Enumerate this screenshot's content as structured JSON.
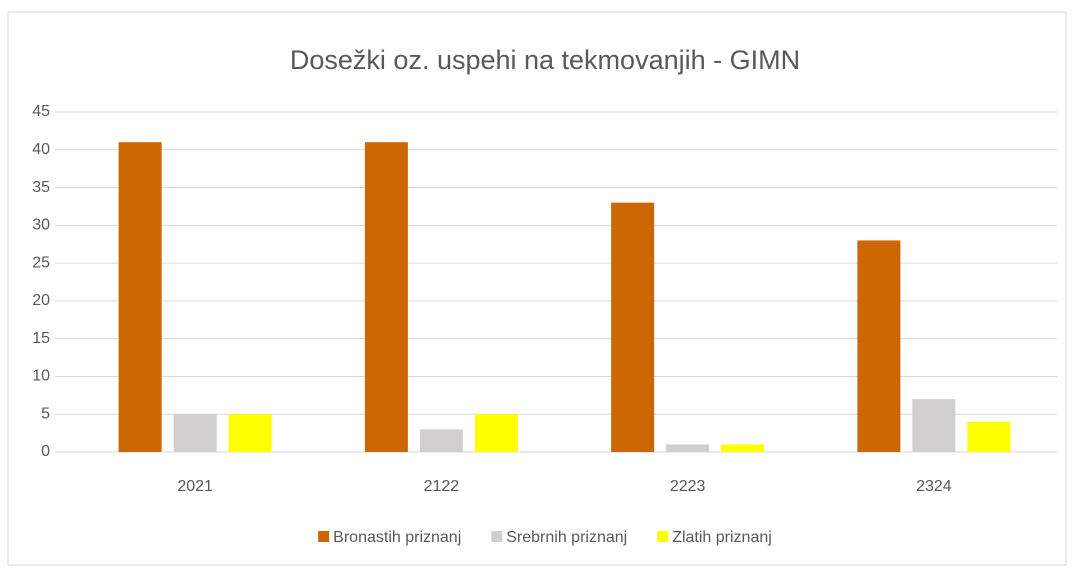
{
  "chart_data": {
    "type": "bar",
    "title": "Dosežki oz. uspehi na tekmovanjih - GIMN",
    "categories": [
      "2021",
      "2122",
      "2223",
      "2324"
    ],
    "series": [
      {
        "name": "Bronastih priznanj",
        "color": "#cc6600",
        "values": [
          41,
          41,
          33,
          28
        ]
      },
      {
        "name": "Srebrnih priznanj",
        "color": "#d0cece",
        "values": [
          5,
          3,
          1,
          7
        ]
      },
      {
        "name": "Zlatih priznanj",
        "color": "#ffff00",
        "values": [
          5,
          5,
          1,
          4
        ]
      }
    ],
    "ylim": [
      0,
      45
    ],
    "yticks": [
      0,
      5,
      10,
      15,
      20,
      25,
      30,
      35,
      40,
      45
    ],
    "grid": true,
    "legend": "bottom"
  }
}
